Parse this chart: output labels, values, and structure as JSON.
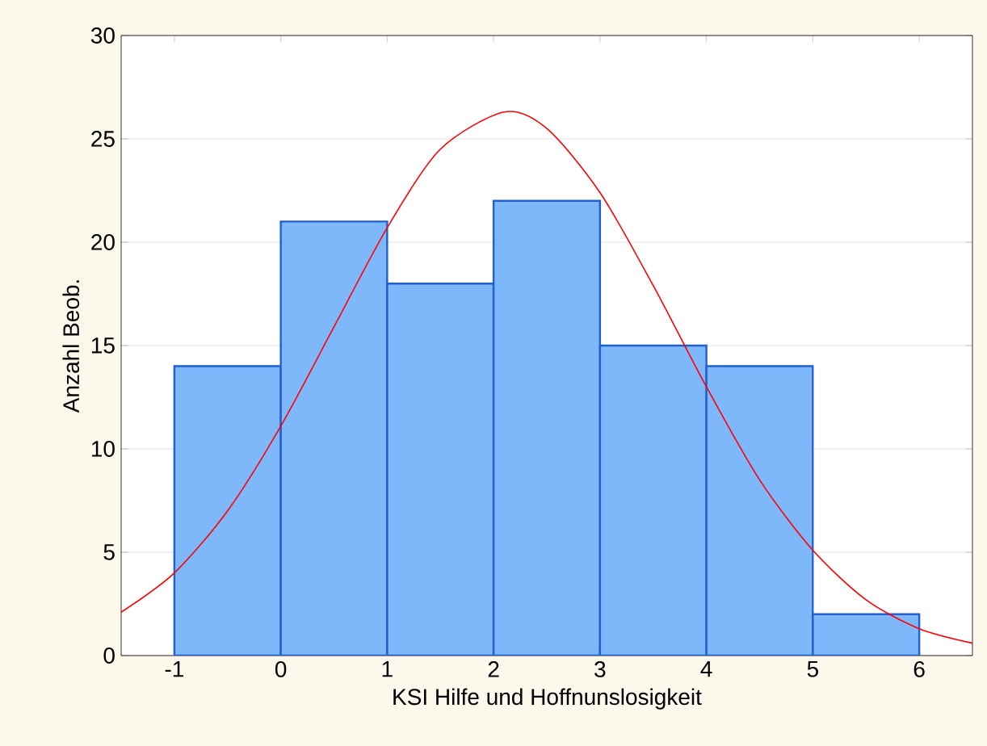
{
  "chart_data": {
    "type": "histogram",
    "xlabel": "KSI Hilfe und Hoffnunslosigkeit",
    "ylabel": "Anzahl Beob.",
    "bins": [
      -1,
      0,
      1,
      2,
      3,
      4,
      5,
      6
    ],
    "values": [
      14,
      21,
      18,
      22,
      15,
      14,
      2
    ],
    "color": "#7fb8fa",
    "series": [
      {
        "type": "line",
        "color": "#ff0000",
        "x": [
          -1.5,
          -1,
          -0.5,
          0,
          0.5,
          1,
          1.5,
          2.1,
          2.5,
          3,
          3.5,
          4,
          4.5,
          5,
          5.5,
          6,
          6.5
        ],
        "values": [
          2.1,
          4.0,
          7.0,
          11.1,
          15.9,
          20.7,
          24.5,
          26.3,
          25.5,
          22.4,
          17.9,
          13.0,
          8.5,
          5.1,
          2.7,
          1.3,
          0.6
        ]
      }
    ],
    "xlim": [
      -1.5,
      6.5
    ],
    "ylim": [
      0,
      30
    ],
    "xticks": [
      -1,
      0,
      1,
      2,
      3,
      4,
      5,
      6
    ],
    "yticks": [
      0,
      5,
      10,
      15,
      20,
      25,
      30
    ],
    "grid": "y"
  }
}
